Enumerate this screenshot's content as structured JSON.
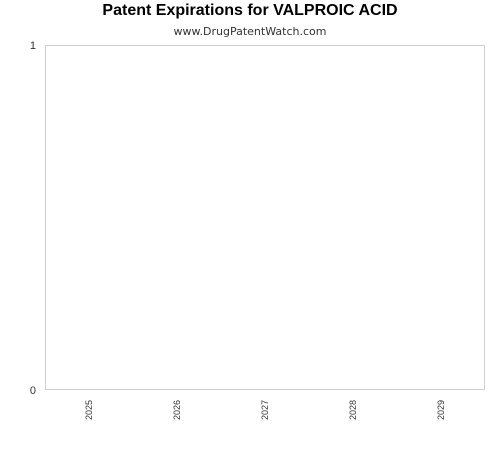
{
  "chart_data": {
    "type": "bar",
    "title": "Patent Expirations for VALPROIC ACID",
    "subtitle": "www.DrugPatentWatch.com",
    "categories": [
      "2025",
      "2026",
      "2027",
      "2028",
      "2029"
    ],
    "values": [
      0,
      0,
      0,
      0,
      0
    ],
    "ylim": [
      0,
      1
    ],
    "yticks": [
      "0",
      "1"
    ],
    "xlabel": "",
    "ylabel": "",
    "grid": false
  }
}
